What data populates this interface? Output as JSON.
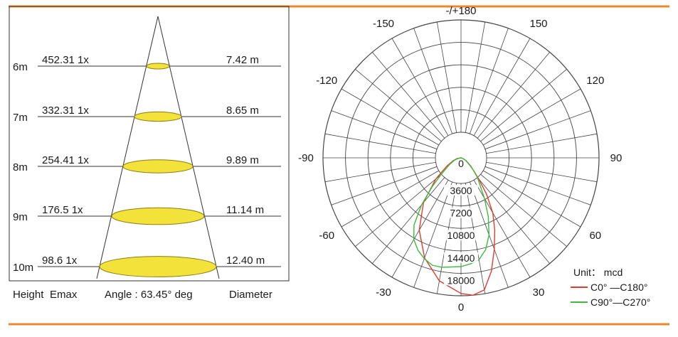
{
  "colors": {
    "rule": "#e8892f",
    "ellipse_fill": "#f2e23a",
    "ellipse_stroke": "#8a7d10",
    "grid": "#444444",
    "c0_c180": "#e23b2e",
    "c90_c270": "#3dbb3d"
  },
  "chart_data": [
    {
      "type": "table",
      "columns_footer": {
        "height": "Height",
        "emax": "Emax",
        "angle": "Angle : 63.45° deg",
        "diameter": "Diameter"
      },
      "rows": [
        {
          "height": "6m",
          "emax": "452.31 1x",
          "diameter": "7.42 m"
        },
        {
          "height": "7m",
          "emax": "332.31 1x",
          "diameter": "8.65 m"
        },
        {
          "height": "8m",
          "emax": "254.41 1x",
          "diameter": "9.89 m"
        },
        {
          "height": "9m",
          "emax": "176.5 1x",
          "diameter": "11.14 m"
        },
        {
          "height": "10m",
          "emax": "98.6 1x",
          "diameter": "12.40 m"
        }
      ]
    },
    {
      "type": "polar",
      "unit": "Unit： mcd",
      "rmax": 18000,
      "radial_ticks": [
        {
          "value": 0,
          "label": "0"
        },
        {
          "value": 3600,
          "label": "3600"
        },
        {
          "value": 7200,
          "label": "7200"
        },
        {
          "value": 10800,
          "label": "10800"
        },
        {
          "value": 14400,
          "label": "14400"
        },
        {
          "value": 18000,
          "label": "18000"
        }
      ],
      "angle_labels": [
        {
          "angle": 180,
          "label": "-/+180"
        },
        {
          "angle": 150,
          "label": "150"
        },
        {
          "angle": -150,
          "label": "-150"
        },
        {
          "angle": 120,
          "label": "120"
        },
        {
          "angle": -120,
          "label": "-120"
        },
        {
          "angle": 90,
          "label": "90"
        },
        {
          "angle": -90,
          "label": "-90"
        },
        {
          "angle": 60,
          "label": "60"
        },
        {
          "angle": -60,
          "label": "-60"
        },
        {
          "angle": 30,
          "label": "30"
        },
        {
          "angle": -30,
          "label": "-30"
        },
        {
          "angle": 0,
          "label": "0"
        }
      ],
      "series": [
        {
          "name": "C0° —C180°",
          "color": "#e23b2e",
          "points": [
            [
              -90,
              0
            ],
            [
              -80,
              500
            ],
            [
              -70,
              1100
            ],
            [
              -60,
              2100
            ],
            [
              -50,
              4300
            ],
            [
              -40,
              7600
            ],
            [
              -30,
              10900
            ],
            [
              -20,
              13900
            ],
            [
              -10,
              16300
            ],
            [
              0,
              17700
            ],
            [
              5,
              18000
            ],
            [
              10,
              17500
            ],
            [
              15,
              15300
            ],
            [
              20,
              12700
            ],
            [
              25,
              10400
            ],
            [
              30,
              8300
            ],
            [
              35,
              5800
            ],
            [
              40,
              3600
            ],
            [
              45,
              2300
            ],
            [
              50,
              1500
            ],
            [
              60,
              750
            ],
            [
              70,
              300
            ],
            [
              90,
              0
            ]
          ]
        },
        {
          "name": "C90°—C270°",
          "color": "#3dbb3d",
          "points": [
            [
              -90,
              0
            ],
            [
              -80,
              300
            ],
            [
              -70,
              900
            ],
            [
              -60,
              1700
            ],
            [
              -50,
              3400
            ],
            [
              -45,
              5300
            ],
            [
              -40,
              8000
            ],
            [
              -35,
              10700
            ],
            [
              -30,
              12300
            ],
            [
              -25,
              13300
            ],
            [
              -20,
              14000
            ],
            [
              -15,
              14500
            ],
            [
              -10,
              14500
            ],
            [
              -5,
              14300
            ],
            [
              0,
              14200
            ],
            [
              5,
              13900
            ],
            [
              10,
              13500
            ],
            [
              15,
              12400
            ],
            [
              20,
              10700
            ],
            [
              25,
              8400
            ],
            [
              30,
              6100
            ],
            [
              35,
              4300
            ],
            [
              40,
              3300
            ],
            [
              50,
              1700
            ],
            [
              60,
              800
            ],
            [
              70,
              300
            ],
            [
              90,
              0
            ]
          ]
        }
      ]
    }
  ]
}
